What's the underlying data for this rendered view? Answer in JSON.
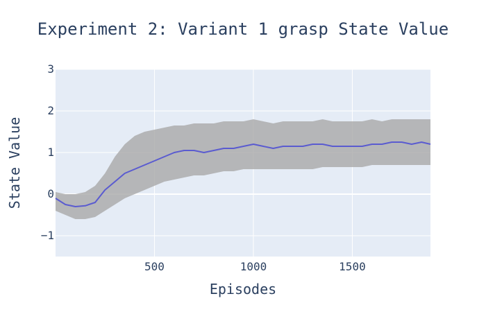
{
  "chart_data": {
    "type": "line",
    "title": "Experiment 2: Variant 1 grasp State Value",
    "xlabel": "Episodes",
    "ylabel": "State Value",
    "xlim": [
      0,
      1895
    ],
    "ylim": [
      -1.5,
      3
    ],
    "xticks": [
      500,
      1000,
      1500
    ],
    "xtick_labels": [
      "500",
      "1000",
      "1500"
    ],
    "yticks": [
      -1,
      0,
      1,
      2,
      3
    ],
    "ytick_labels": [
      "−1",
      "0",
      "1",
      "2",
      "3"
    ],
    "grid": true,
    "legend": "none",
    "colors": {
      "plot_background": "#e5ecf6",
      "grid": "#ffffff",
      "band": "#a9a9a9",
      "line": "#5a5bd0",
      "text": "#2a3f5f"
    },
    "series": [
      {
        "kind": "mean",
        "x": [
          0,
          50,
          100,
          150,
          200,
          250,
          300,
          350,
          400,
          450,
          500,
          550,
          600,
          650,
          700,
          750,
          800,
          850,
          900,
          950,
          1000,
          1050,
          1100,
          1150,
          1200,
          1250,
          1300,
          1350,
          1400,
          1450,
          1500,
          1550,
          1600,
          1650,
          1700,
          1750,
          1800,
          1850,
          1895
        ],
        "values": [
          -0.1,
          -0.25,
          -0.3,
          -0.28,
          -0.2,
          0.1,
          0.3,
          0.5,
          0.6,
          0.7,
          0.8,
          0.9,
          1.0,
          1.05,
          1.05,
          1.0,
          1.05,
          1.1,
          1.1,
          1.15,
          1.2,
          1.15,
          1.1,
          1.15,
          1.15,
          1.15,
          1.2,
          1.2,
          1.15,
          1.15,
          1.15,
          1.15,
          1.2,
          1.2,
          1.25,
          1.25,
          1.2,
          1.25,
          1.2
        ]
      },
      {
        "kind": "band",
        "x": [
          0,
          50,
          100,
          150,
          200,
          250,
          300,
          350,
          400,
          450,
          500,
          550,
          600,
          650,
          700,
          750,
          800,
          850,
          900,
          950,
          1000,
          1050,
          1100,
          1150,
          1200,
          1250,
          1300,
          1350,
          1400,
          1450,
          1500,
          1550,
          1600,
          1650,
          1700,
          1750,
          1800,
          1850,
          1895
        ],
        "lower": [
          -0.4,
          -0.5,
          -0.6,
          -0.6,
          -0.55,
          -0.4,
          -0.25,
          -0.1,
          0.0,
          0.1,
          0.2,
          0.3,
          0.35,
          0.4,
          0.45,
          0.45,
          0.5,
          0.55,
          0.55,
          0.6,
          0.6,
          0.6,
          0.6,
          0.6,
          0.6,
          0.6,
          0.6,
          0.65,
          0.65,
          0.65,
          0.65,
          0.65,
          0.7,
          0.7,
          0.7,
          0.7,
          0.7,
          0.7,
          0.7
        ],
        "upper": [
          0.05,
          0.0,
          0.0,
          0.05,
          0.2,
          0.5,
          0.9,
          1.2,
          1.4,
          1.5,
          1.55,
          1.6,
          1.65,
          1.65,
          1.7,
          1.7,
          1.7,
          1.75,
          1.75,
          1.75,
          1.8,
          1.75,
          1.7,
          1.75,
          1.75,
          1.75,
          1.75,
          1.8,
          1.75,
          1.75,
          1.75,
          1.75,
          1.8,
          1.75,
          1.8,
          1.8,
          1.8,
          1.8,
          1.8
        ]
      }
    ]
  }
}
